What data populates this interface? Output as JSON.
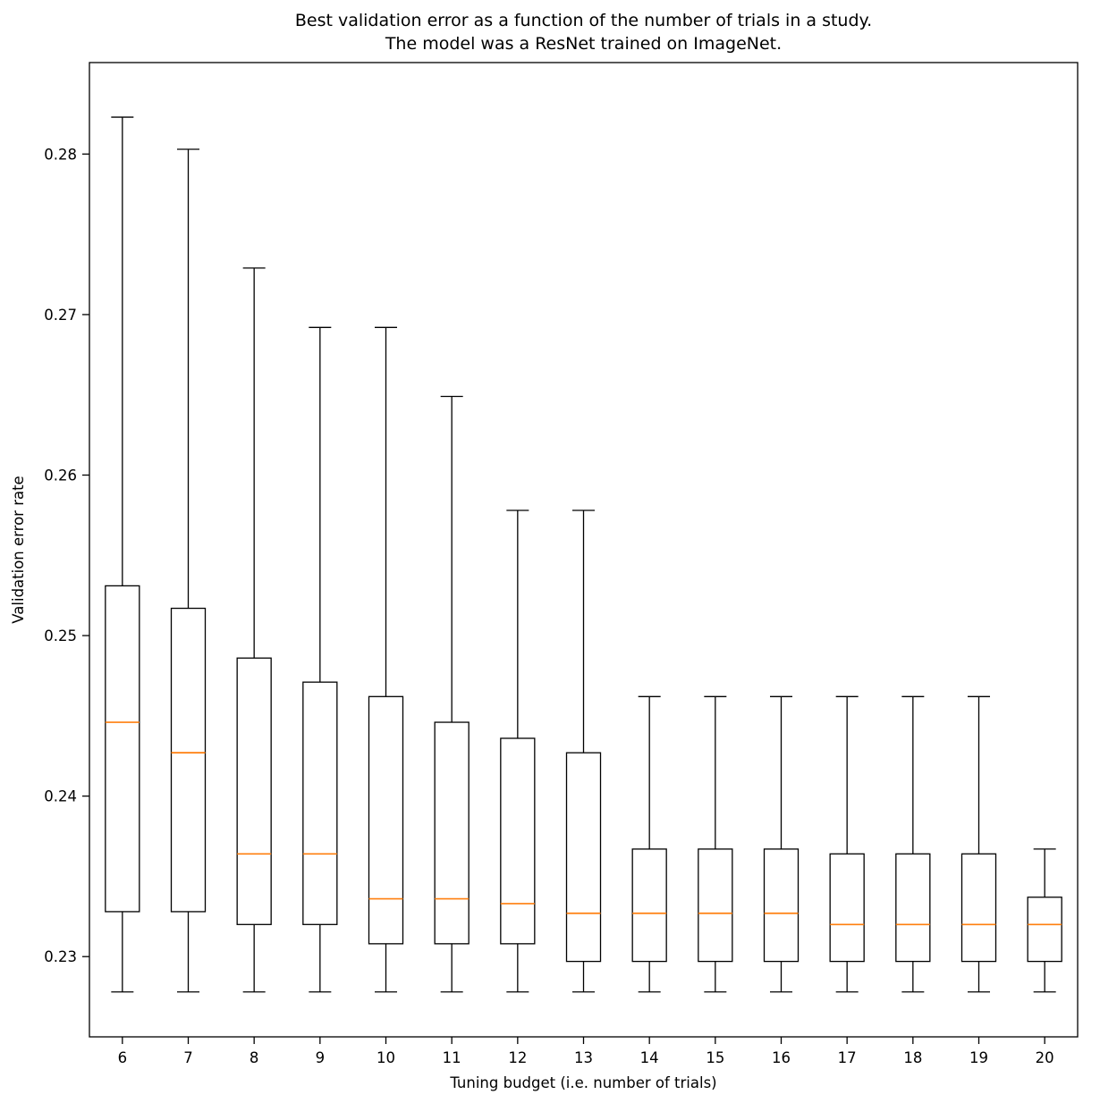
{
  "title": {
    "line1": "Best validation error as a function of the number of trials in a study.",
    "line2": "The model was a ResNet trained on ImageNet."
  },
  "chart_data": {
    "type": "boxplot",
    "title": "Best validation error as a function of the number of trials in a study. The model was a ResNet trained on ImageNet.",
    "xlabel": "Tuning budget (i.e. number of trials)",
    "ylabel": "Validation error rate",
    "categories": [
      6,
      7,
      8,
      9,
      10,
      11,
      12,
      13,
      14,
      15,
      16,
      17,
      18,
      19,
      20
    ],
    "ylim": [
      0.225,
      0.2857
    ],
    "yticks": [
      0.23,
      0.24,
      0.25,
      0.26,
      0.27,
      0.28
    ],
    "grid": false,
    "legend": "none",
    "box_edge_color": "#000000",
    "median_color": "#ff7f0e",
    "boxes": [
      {
        "category": 6,
        "whislo": 0.2278,
        "q1": 0.2328,
        "med": 0.2446,
        "q3": 0.2531,
        "whishi": 0.2823
      },
      {
        "category": 7,
        "whislo": 0.2278,
        "q1": 0.2328,
        "med": 0.2427,
        "q3": 0.2517,
        "whishi": 0.2803
      },
      {
        "category": 8,
        "whislo": 0.2278,
        "q1": 0.232,
        "med": 0.2364,
        "q3": 0.2486,
        "whishi": 0.2729
      },
      {
        "category": 9,
        "whislo": 0.2278,
        "q1": 0.232,
        "med": 0.2364,
        "q3": 0.2471,
        "whishi": 0.2692
      },
      {
        "category": 10,
        "whislo": 0.2278,
        "q1": 0.2308,
        "med": 0.2336,
        "q3": 0.2462,
        "whishi": 0.2692
      },
      {
        "category": 11,
        "whislo": 0.2278,
        "q1": 0.2308,
        "med": 0.2336,
        "q3": 0.2446,
        "whishi": 0.2649
      },
      {
        "category": 12,
        "whislo": 0.2278,
        "q1": 0.2308,
        "med": 0.2333,
        "q3": 0.2436,
        "whishi": 0.2578
      },
      {
        "category": 13,
        "whislo": 0.2278,
        "q1": 0.2297,
        "med": 0.2327,
        "q3": 0.2427,
        "whishi": 0.2578
      },
      {
        "category": 14,
        "whislo": 0.2278,
        "q1": 0.2297,
        "med": 0.2327,
        "q3": 0.2367,
        "whishi": 0.2462
      },
      {
        "category": 15,
        "whislo": 0.2278,
        "q1": 0.2297,
        "med": 0.2327,
        "q3": 0.2367,
        "whishi": 0.2462
      },
      {
        "category": 16,
        "whislo": 0.2278,
        "q1": 0.2297,
        "med": 0.2327,
        "q3": 0.2367,
        "whishi": 0.2462
      },
      {
        "category": 17,
        "whislo": 0.2278,
        "q1": 0.2297,
        "med": 0.232,
        "q3": 0.2364,
        "whishi": 0.2462
      },
      {
        "category": 18,
        "whislo": 0.2278,
        "q1": 0.2297,
        "med": 0.232,
        "q3": 0.2364,
        "whishi": 0.2462
      },
      {
        "category": 19,
        "whislo": 0.2278,
        "q1": 0.2297,
        "med": 0.232,
        "q3": 0.2364,
        "whishi": 0.2462
      },
      {
        "category": 20,
        "whislo": 0.2278,
        "q1": 0.2297,
        "med": 0.232,
        "q3": 0.2337,
        "whishi": 0.2367
      }
    ]
  }
}
